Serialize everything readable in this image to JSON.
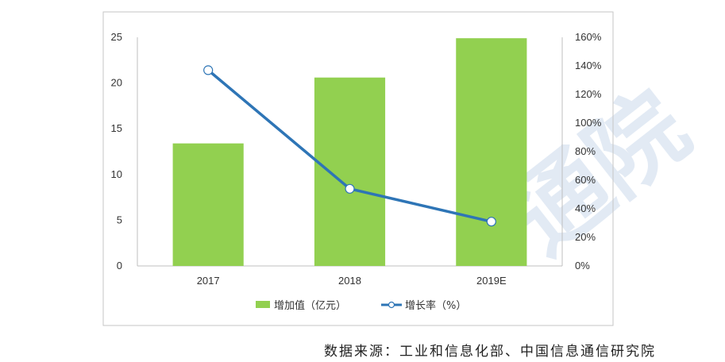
{
  "chart_data": {
    "type": "bar",
    "categories": [
      "2017",
      "2018",
      "2019E"
    ],
    "series": [
      {
        "name": "增加值（亿元）",
        "type": "bar",
        "axis": "left",
        "values": [
          13.4,
          20.6,
          24.9
        ],
        "color": "#92d050"
      },
      {
        "name": "增长率（%）",
        "type": "line",
        "axis": "right",
        "values": [
          137,
          54,
          31
        ],
        "color": "#2e75b6"
      }
    ],
    "y_left": {
      "min": 0,
      "max": 25,
      "ticks": [
        "0",
        "5",
        "10",
        "15",
        "20",
        "25"
      ]
    },
    "y_right": {
      "min": 0,
      "max": 160,
      "ticks": [
        "0%",
        "20%",
        "40%",
        "60%",
        "80%",
        "100%",
        "120%",
        "140%",
        "160%"
      ]
    },
    "grid": false,
    "legend_position": "bottom"
  },
  "source_text": "数据来源：工业和信息化部、中国信息通信研究院",
  "watermark_text": "通院"
}
